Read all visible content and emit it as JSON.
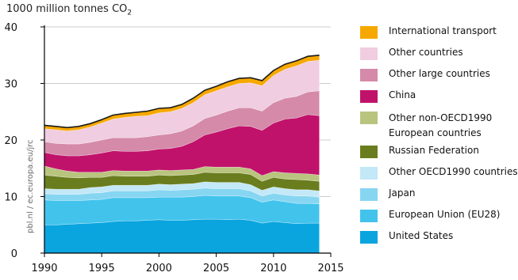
{
  "chart_data": {
    "type": "area",
    "stacked": true,
    "unit_label": "1000 million tonnes CO",
    "unit_subscript": "2",
    "x": [
      1990,
      1991,
      1992,
      1993,
      1994,
      1995,
      1996,
      1997,
      1998,
      1999,
      2000,
      2001,
      2002,
      2003,
      2004,
      2005,
      2006,
      2007,
      2008,
      2009,
      2010,
      2011,
      2012,
      2013,
      2014
    ],
    "xticks": [
      1990,
      1995,
      2000,
      2005,
      2010,
      2015
    ],
    "xlim": [
      1990,
      2015
    ],
    "yticks": [
      0,
      10,
      20,
      30,
      40
    ],
    "ylim": [
      0,
      40
    ],
    "source_note": "pbl.nl / ec.europa.eu/jrc",
    "series": [
      {
        "name": "United States",
        "color": "#0aa5df",
        "values": [
          5.0,
          5.0,
          5.1,
          5.2,
          5.3,
          5.4,
          5.6,
          5.7,
          5.7,
          5.8,
          5.9,
          5.8,
          5.8,
          5.9,
          6.0,
          6.0,
          5.9,
          6.0,
          5.8,
          5.3,
          5.6,
          5.4,
          5.2,
          5.3,
          5.3
        ]
      },
      {
        "name": "European Union (EU28)",
        "color": "#42c3ec",
        "values": [
          4.4,
          4.3,
          4.2,
          4.1,
          4.1,
          4.1,
          4.2,
          4.1,
          4.1,
          4.0,
          4.0,
          4.1,
          4.1,
          4.1,
          4.2,
          4.1,
          4.2,
          4.1,
          4.0,
          3.7,
          3.8,
          3.7,
          3.6,
          3.5,
          3.4
        ]
      },
      {
        "name": "Japan",
        "color": "#86d6f2",
        "values": [
          1.1,
          1.1,
          1.1,
          1.1,
          1.2,
          1.2,
          1.2,
          1.2,
          1.2,
          1.2,
          1.3,
          1.2,
          1.3,
          1.3,
          1.3,
          1.3,
          1.3,
          1.3,
          1.2,
          1.1,
          1.2,
          1.2,
          1.3,
          1.3,
          1.2
        ]
      },
      {
        "name": "Other OECD1990 countries",
        "color": "#c3e8f7",
        "values": [
          0.9,
          0.9,
          0.9,
          0.9,
          1.0,
          1.0,
          1.0,
          1.0,
          1.0,
          1.0,
          1.0,
          1.0,
          1.0,
          1.0,
          1.1,
          1.1,
          1.1,
          1.1,
          1.1,
          1.0,
          1.1,
          1.1,
          1.1,
          1.1,
          1.1
        ]
      },
      {
        "name": "Russian Federation",
        "color": "#6a7d1e",
        "values": [
          2.4,
          2.3,
          2.1,
          2.0,
          1.8,
          1.7,
          1.7,
          1.6,
          1.6,
          1.6,
          1.6,
          1.6,
          1.6,
          1.6,
          1.7,
          1.7,
          1.7,
          1.7,
          1.8,
          1.6,
          1.7,
          1.7,
          1.8,
          1.7,
          1.7
        ]
      },
      {
        "name": "Other non-OECD1990 European countries",
        "color": "#b9c47e",
        "values": [
          1.6,
          1.3,
          1.1,
          1.0,
          0.9,
          0.9,
          0.9,
          0.9,
          0.9,
          0.9,
          0.9,
          0.9,
          0.9,
          0.9,
          1.0,
          1.0,
          1.0,
          1.0,
          1.0,
          1.0,
          1.0,
          1.1,
          1.1,
          1.1,
          1.1
        ]
      },
      {
        "name": "China",
        "color": "#c1126b",
        "values": [
          2.4,
          2.5,
          2.7,
          2.9,
          3.1,
          3.4,
          3.5,
          3.5,
          3.5,
          3.6,
          3.7,
          3.9,
          4.2,
          4.9,
          5.6,
          6.2,
          6.8,
          7.3,
          7.5,
          8.0,
          8.6,
          9.5,
          9.8,
          10.5,
          10.5
        ]
      },
      {
        "name": "Other large countries",
        "color": "#d48aa8",
        "values": [
          1.9,
          2.0,
          2.1,
          2.1,
          2.2,
          2.3,
          2.3,
          2.4,
          2.4,
          2.5,
          2.5,
          2.6,
          2.7,
          2.8,
          2.9,
          3.0,
          3.1,
          3.2,
          3.3,
          3.4,
          3.6,
          3.7,
          3.8,
          4.0,
          4.4
        ]
      },
      {
        "name": "Other countries",
        "color": "#f0cde0",
        "values": [
          2.3,
          2.4,
          2.3,
          2.5,
          2.7,
          3.0,
          3.3,
          3.6,
          3.8,
          3.7,
          3.9,
          3.9,
          4.0,
          4.1,
          4.2,
          4.3,
          4.3,
          4.3,
          4.4,
          4.5,
          4.8,
          5.1,
          5.4,
          5.4,
          5.4
        ]
      },
      {
        "name": "International transport",
        "color": "#f6a800",
        "values": [
          0.6,
          0.6,
          0.6,
          0.6,
          0.6,
          0.6,
          0.7,
          0.7,
          0.7,
          0.8,
          0.8,
          0.7,
          0.7,
          0.8,
          0.8,
          0.8,
          0.9,
          0.9,
          0.9,
          0.9,
          0.9,
          0.9,
          0.9,
          0.9,
          0.9
        ]
      }
    ],
    "legend": [
      {
        "label": "International transport",
        "color": "#f6a800"
      },
      {
        "label": "Other countries",
        "color": "#f0cde0"
      },
      {
        "label": "Other large countries",
        "color": "#d48aa8"
      },
      {
        "label": "China",
        "color": "#c1126b"
      },
      {
        "label": "Other non-OECD1990",
        "label2": "European countries",
        "color": "#b9c47e"
      },
      {
        "label": "Russian Federation",
        "color": "#6a7d1e"
      },
      {
        "label": "Other OECD1990 countries",
        "color": "#c3e8f7"
      },
      {
        "label": "Japan",
        "color": "#86d6f2"
      },
      {
        "label": "European Union (EU28)",
        "color": "#42c3ec"
      },
      {
        "label": "United States",
        "color": "#0aa5df"
      }
    ]
  }
}
